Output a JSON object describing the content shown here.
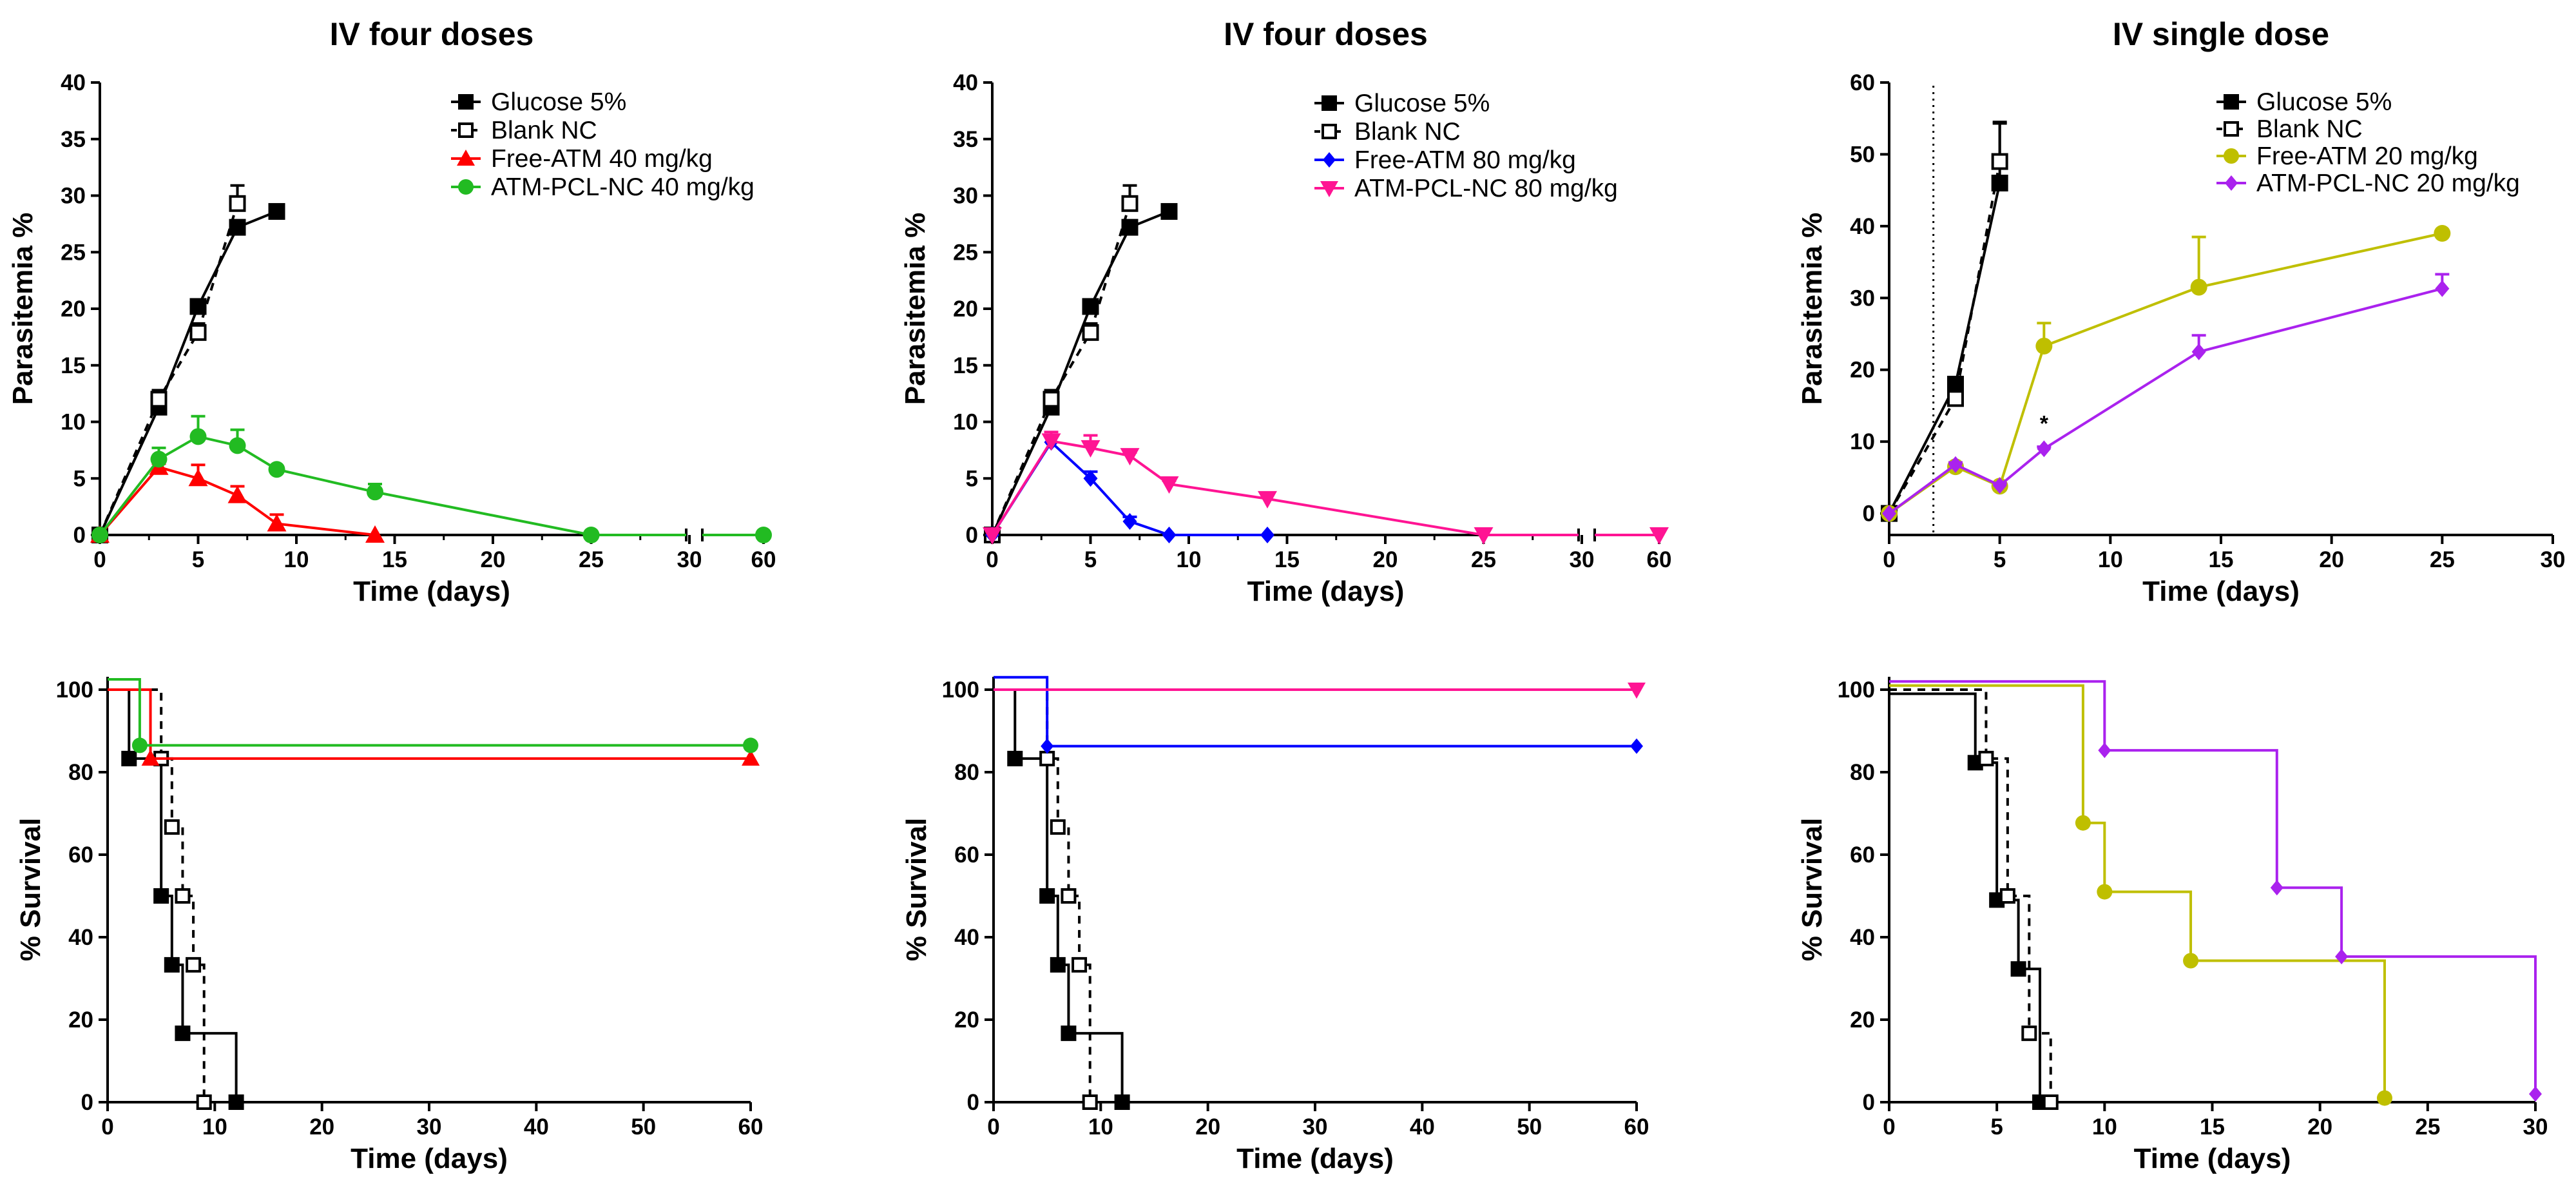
{
  "chart_data": [
    {
      "type": "line",
      "title": "IV four doses",
      "xlabel": "Time (days)",
      "ylabel": "Parasitemia %",
      "xtick_labels": [
        "0",
        "5",
        "10",
        "15",
        "20",
        "25",
        "30",
        "60"
      ],
      "ytick_labels": [
        "0",
        "5",
        "10",
        "15",
        "20",
        "25",
        "30",
        "35",
        "40"
      ],
      "ylim": [
        0,
        40
      ],
      "axis_break": "between 30 and 60 on x",
      "series": [
        {
          "name": "Glucose 5%",
          "color": "#000000",
          "marker": "square-filled",
          "dash": "solid",
          "x": [
            0,
            3,
            5,
            7,
            9
          ],
          "y": [
            0,
            11.3,
            20.2,
            27.2,
            28.6
          ],
          "err": [
            0,
            0.5,
            0.4,
            0.5,
            0.3
          ]
        },
        {
          "name": "Blank NC",
          "color": "#000000",
          "marker": "square-open",
          "dash": "dashed",
          "x": [
            0,
            3,
            5,
            7
          ],
          "y": [
            0,
            12.0,
            17.9,
            29.3
          ],
          "err": [
            0,
            0.8,
            0.8,
            1.6
          ]
        },
        {
          "name": "Free-ATM 40 mg/kg",
          "color": "#ff0000",
          "marker": "triangle-up",
          "dash": "solid",
          "x": [
            0,
            3,
            5,
            7,
            9,
            14
          ],
          "y": [
            0,
            6.0,
            5.0,
            3.5,
            1.0,
            0
          ],
          "err": [
            0,
            0.3,
            1.2,
            0.8,
            0.8,
            0
          ]
        },
        {
          "name": "ATM-PCL-NC 40 mg/kg",
          "color": "#22bb22",
          "marker": "circle",
          "dash": "solid",
          "x": [
            0,
            3,
            5,
            7,
            9,
            14,
            25,
            60
          ],
          "y": [
            0,
            6.7,
            8.7,
            7.9,
            5.8,
            3.8,
            0,
            0
          ],
          "err": [
            0,
            1.0,
            1.8,
            1.4,
            0.3,
            0.7,
            0,
            0
          ]
        }
      ]
    },
    {
      "type": "line",
      "title": "IV four doses",
      "xlabel": "Time (days)",
      "ylabel": "Parasitemia %",
      "xtick_labels": [
        "0",
        "5",
        "10",
        "15",
        "20",
        "25",
        "30",
        "60"
      ],
      "ytick_labels": [
        "0",
        "5",
        "10",
        "15",
        "20",
        "25",
        "30",
        "35",
        "40"
      ],
      "ylim": [
        0,
        40
      ],
      "axis_break": "between 30 and 60 on x",
      "series": [
        {
          "name": "Glucose 5%",
          "color": "#000000",
          "marker": "square-filled",
          "dash": "solid",
          "x": [
            0,
            3,
            5,
            7,
            9
          ],
          "y": [
            0,
            11.3,
            20.2,
            27.2,
            28.6
          ],
          "err": [
            0,
            0.5,
            0.4,
            0.5,
            0.3
          ]
        },
        {
          "name": "Blank NC",
          "color": "#000000",
          "marker": "square-open",
          "dash": "dashed",
          "x": [
            0,
            3,
            5,
            7
          ],
          "y": [
            0,
            12.0,
            17.9,
            29.3
          ],
          "err": [
            0,
            0.8,
            0.8,
            1.6
          ]
        },
        {
          "name": "Free-ATM 80 mg/kg",
          "color": "#0000ff",
          "marker": "diamond",
          "dash": "solid",
          "x": [
            0,
            3,
            5,
            7,
            9,
            14
          ],
          "y": [
            0,
            8.2,
            5.0,
            1.2,
            0,
            0
          ],
          "err": [
            0,
            0.6,
            0.6,
            0.4,
            0,
            0
          ]
        },
        {
          "name": "ATM-PCL-NC 80 mg/kg",
          "color": "#ff1493",
          "marker": "triangle-down",
          "dash": "solid",
          "x": [
            0,
            3,
            5,
            7,
            9,
            14,
            25,
            60
          ],
          "y": [
            0,
            8.3,
            7.7,
            7.0,
            4.5,
            3.2,
            0,
            0
          ],
          "err": [
            0,
            0.8,
            1.1,
            0.3,
            0.3,
            0.4,
            0,
            0
          ]
        }
      ]
    },
    {
      "type": "line",
      "title": "IV single dose",
      "xlabel": "Time (days)",
      "ylabel": "Parasitemia %",
      "xtick_labels": [
        "0",
        "5",
        "10",
        "15",
        "20",
        "25",
        "30"
      ],
      "ytick_labels": [
        "0",
        "10",
        "20",
        "30",
        "40",
        "50",
        "60"
      ],
      "ylim": [
        -3,
        60
      ],
      "xlim": [
        0,
        30
      ],
      "dotted_line_x": 2,
      "annotation": "*",
      "series": [
        {
          "name": "Glucose 5%",
          "color": "#000000",
          "marker": "square-filled",
          "dash": "solid",
          "x": [
            0,
            3,
            5
          ],
          "y": [
            0,
            18.0,
            46.0
          ],
          "err": [
            0,
            0.5,
            8.3
          ]
        },
        {
          "name": "Blank NC",
          "color": "#000000",
          "marker": "square-open",
          "dash": "dashed",
          "x": [
            0,
            3,
            5
          ],
          "y": [
            0,
            16.0,
            49.0
          ],
          "err": [
            0,
            0.5,
            5.5
          ]
        },
        {
          "name": "Free-ATM 20 mg/kg",
          "color": "#bfbf00",
          "marker": "circle",
          "dash": "solid",
          "x": [
            0,
            3,
            5,
            7,
            14,
            25
          ],
          "y": [
            0,
            6.5,
            3.8,
            23.3,
            31.5,
            39.0
          ],
          "err": [
            0,
            0.5,
            0.5,
            3.2,
            7.0,
            0
          ]
        },
        {
          "name": "ATM-PCL-NC 20 mg/kg",
          "color": "#aa22ee",
          "marker": "diamond",
          "dash": "solid",
          "x": [
            0,
            3,
            5,
            7,
            14,
            25
          ],
          "y": [
            0,
            6.8,
            3.9,
            9.0,
            22.5,
            31.3
          ],
          "err": [
            0,
            0.3,
            0.3,
            0.3,
            2.3,
            2.0
          ]
        }
      ]
    },
    {
      "type": "step",
      "title": "",
      "xlabel": "Time (days)",
      "ylabel": "% Survival",
      "xtick_labels": [
        "0",
        "10",
        "20",
        "30",
        "40",
        "50",
        "60"
      ],
      "ytick_labels": [
        "0",
        "20",
        "40",
        "60",
        "80",
        "100"
      ],
      "xlim": [
        0,
        60
      ],
      "ylim": [
        0,
        100
      ],
      "series": [
        {
          "name": "Glucose 5%",
          "color": "#000000",
          "marker": "square-filled",
          "dash": "solid",
          "steps": [
            [
              0,
              100
            ],
            [
              2,
              83.3
            ],
            [
              5,
              50
            ],
            [
              6,
              33.3
            ],
            [
              7,
              16.7
            ],
            [
              12,
              0
            ]
          ]
        },
        {
          "name": "Blank NC",
          "color": "#000000",
          "marker": "square-open",
          "dash": "dashed",
          "steps": [
            [
              0,
              100
            ],
            [
              5,
              83.3
            ],
            [
              6,
              66.7
            ],
            [
              7,
              50
            ],
            [
              8,
              33.3
            ],
            [
              9,
              0
            ]
          ]
        },
        {
          "name": "Free-ATM 40 mg/kg",
          "color": "#ff0000",
          "marker": "triangle-up",
          "dash": "solid",
          "steps": [
            [
              0,
              100
            ],
            [
              4,
              83.3
            ],
            [
              60,
              83.3
            ]
          ]
        },
        {
          "name": "ATM-PCL-NC 40 mg/kg",
          "color": "#22bb22",
          "marker": "circle",
          "dash": "solid",
          "steps": [
            [
              0,
              102.5
            ],
            [
              3,
              86.5
            ],
            [
              60,
              86.5
            ]
          ]
        }
      ]
    },
    {
      "type": "step",
      "title": "",
      "xlabel": "Time (days)",
      "ylabel": "% Survival",
      "xtick_labels": [
        "0",
        "10",
        "20",
        "30",
        "40",
        "50",
        "60"
      ],
      "ytick_labels": [
        "0",
        "20",
        "40",
        "60",
        "80",
        "100"
      ],
      "xlim": [
        0,
        60
      ],
      "ylim": [
        0,
        100
      ],
      "series": [
        {
          "name": "Glucose 5%",
          "color": "#000000",
          "marker": "square-filled",
          "dash": "solid",
          "steps": [
            [
              0,
              100
            ],
            [
              2,
              83.3
            ],
            [
              5,
              50
            ],
            [
              6,
              33.3
            ],
            [
              7,
              16.7
            ],
            [
              12,
              0
            ]
          ]
        },
        {
          "name": "Blank NC",
          "color": "#000000",
          "marker": "square-open",
          "dash": "dashed",
          "steps": [
            [
              0,
              100
            ],
            [
              5,
              83.3
            ],
            [
              6,
              66.7
            ],
            [
              7,
              50
            ],
            [
              8,
              33.3
            ],
            [
              9,
              0
            ]
          ]
        },
        {
          "name": "Free-ATM 80 mg/kg",
          "color": "#0000ff",
          "marker": "diamond",
          "dash": "solid",
          "steps": [
            [
              0,
              103
            ],
            [
              5,
              86.3
            ],
            [
              60,
              86.3
            ]
          ]
        },
        {
          "name": "ATM-PCL-NC 80 mg/kg",
          "color": "#ff1493",
          "marker": "triangle-down",
          "dash": "solid",
          "steps": [
            [
              0,
              100
            ],
            [
              60,
              100
            ]
          ]
        }
      ]
    },
    {
      "type": "step",
      "title": "",
      "xlabel": "Time (days)",
      "ylabel": "% Survival",
      "xtick_labels": [
        "0",
        "5",
        "10",
        "15",
        "20",
        "25",
        "30"
      ],
      "ytick_labels": [
        "0",
        "20",
        "40",
        "60",
        "80",
        "100"
      ],
      "xlim": [
        0,
        30
      ],
      "ylim": [
        0,
        100
      ],
      "series": [
        {
          "name": "Glucose 5%",
          "color": "#000000",
          "marker": "square-filled",
          "dash": "solid",
          "steps": [
            [
              0,
              99
            ],
            [
              4,
              82.3
            ],
            [
              5,
              49
            ],
            [
              6,
              32.3
            ],
            [
              7,
              0
            ]
          ]
        },
        {
          "name": "Blank NC",
          "color": "#000000",
          "marker": "square-open",
          "dash": "dashed",
          "steps": [
            [
              0,
              100
            ],
            [
              4.5,
              83.3
            ],
            [
              5.5,
              50
            ],
            [
              6.5,
              16.7
            ],
            [
              7.5,
              0
            ]
          ]
        },
        {
          "name": "Free-ATM 20 mg/kg",
          "color": "#bfbf00",
          "marker": "circle",
          "dash": "solid",
          "steps": [
            [
              0,
              101
            ],
            [
              9,
              67.7
            ],
            [
              10,
              51
            ],
            [
              14,
              34.3
            ],
            [
              23,
              1
            ]
          ]
        },
        {
          "name": "ATM-PCL-NC 20 mg/kg",
          "color": "#aa22ee",
          "marker": "diamond",
          "dash": "solid",
          "steps": [
            [
              0,
              102
            ],
            [
              10,
              85.3
            ],
            [
              18,
              52
            ],
            [
              21,
              35.3
            ],
            [
              30,
              2
            ]
          ]
        }
      ]
    }
  ]
}
